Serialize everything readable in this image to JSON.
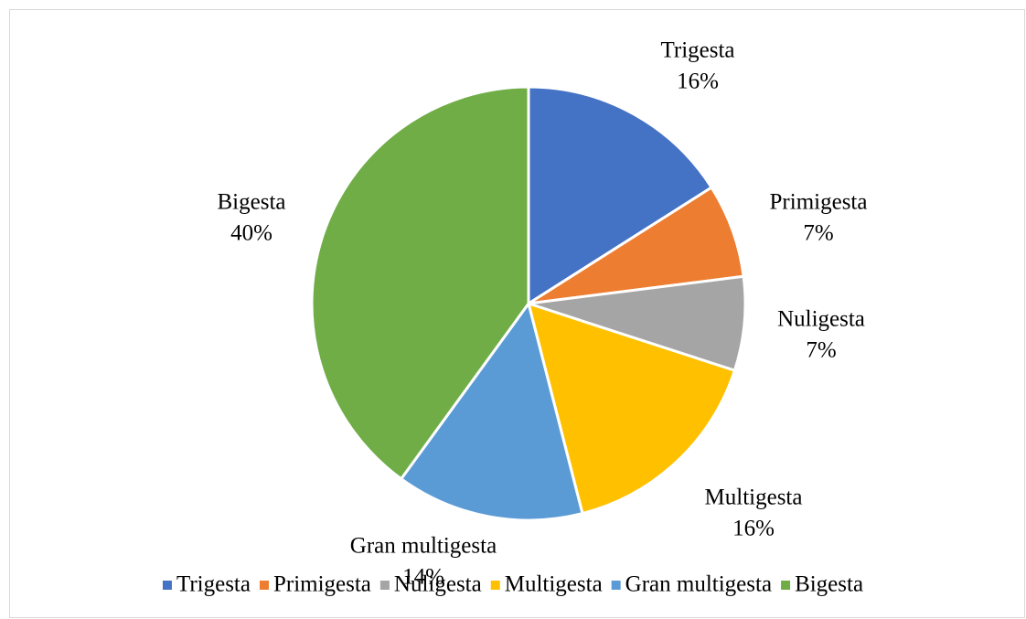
{
  "chart_data": {
    "type": "pie",
    "categories": [
      "Trigesta",
      "Primigesta",
      "Nuligesta",
      "Multigesta",
      "Gran multigesta",
      "Bigesta"
    ],
    "values": [
      16,
      7,
      7,
      16,
      14,
      40
    ],
    "value_labels": [
      "16%",
      "7%",
      "7%",
      "16%",
      "14%",
      "40%"
    ],
    "colors": [
      "#4472c4",
      "#ed7d31",
      "#a5a5a5",
      "#ffc000",
      "#5b9bd5",
      "#70ad47"
    ],
    "legend": "bottom"
  }
}
